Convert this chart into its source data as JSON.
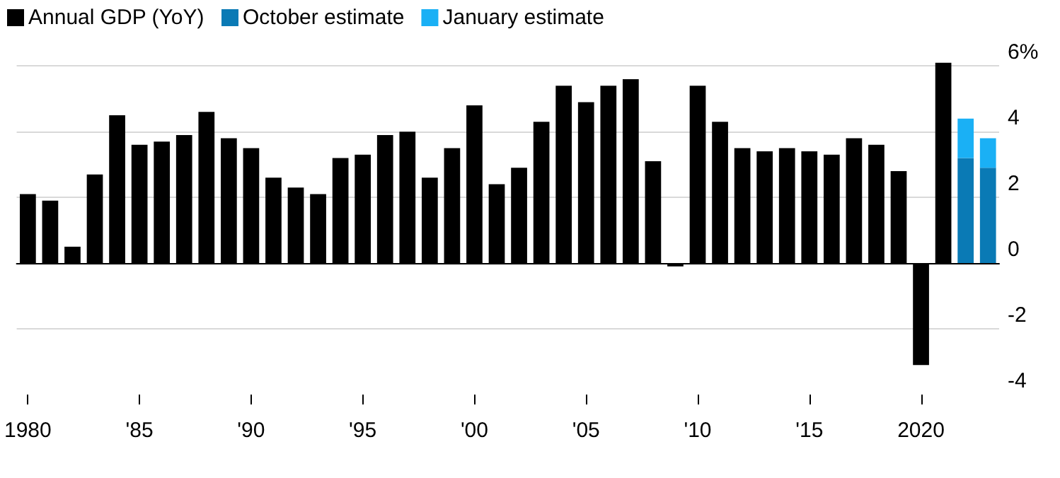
{
  "chart_data": {
    "type": "bar",
    "stacked": true,
    "categories": [
      "1980",
      null,
      null,
      null,
      null,
      "'85",
      null,
      null,
      null,
      null,
      "'90",
      null,
      null,
      null,
      null,
      "'95",
      null,
      null,
      null,
      null,
      "'00",
      null,
      null,
      null,
      null,
      "'05",
      null,
      null,
      null,
      null,
      "'10",
      null,
      null,
      null,
      null,
      "'15",
      null,
      null,
      null,
      null,
      "2020",
      null,
      null,
      null
    ],
    "series": [
      {
        "name": "Annual GDP (YoY)",
        "color": "#000000",
        "values": [
          2.1,
          1.9,
          0.5,
          2.7,
          4.5,
          3.6,
          3.7,
          3.9,
          4.6,
          3.8,
          3.5,
          2.6,
          2.3,
          2.1,
          3.2,
          3.3,
          3.9,
          4.0,
          2.6,
          3.5,
          4.8,
          2.4,
          2.9,
          4.3,
          5.4,
          4.9,
          5.4,
          5.6,
          3.1,
          -0.1,
          5.4,
          4.3,
          3.5,
          3.4,
          3.5,
          3.4,
          3.3,
          3.8,
          3.6,
          2.8,
          -3.1,
          6.1,
          null,
          null
        ]
      },
      {
        "name": "October estimate",
        "color": "#0a7ab5",
        "values": [
          null,
          null,
          null,
          null,
          null,
          null,
          null,
          null,
          null,
          null,
          null,
          null,
          null,
          null,
          null,
          null,
          null,
          null,
          null,
          null,
          null,
          null,
          null,
          null,
          null,
          null,
          null,
          null,
          null,
          null,
          null,
          null,
          null,
          null,
          null,
          null,
          null,
          null,
          null,
          null,
          null,
          null,
          3.2,
          2.9
        ]
      },
      {
        "name": "January estimate",
        "color": "#1ab0f5",
        "values": [
          null,
          null,
          null,
          null,
          null,
          null,
          null,
          null,
          null,
          null,
          null,
          null,
          null,
          null,
          null,
          null,
          null,
          null,
          null,
          null,
          null,
          null,
          null,
          null,
          null,
          null,
          null,
          null,
          null,
          null,
          null,
          null,
          null,
          null,
          null,
          null,
          null,
          null,
          null,
          null,
          null,
          null,
          1.2,
          0.9
        ]
      }
    ],
    "ylim": [
      -4,
      6.2
    ],
    "yticks": [
      -4,
      -2,
      0,
      2,
      4,
      {
        "value": 6,
        "label": "6%"
      }
    ],
    "grid": "y",
    "legend": "top left"
  }
}
